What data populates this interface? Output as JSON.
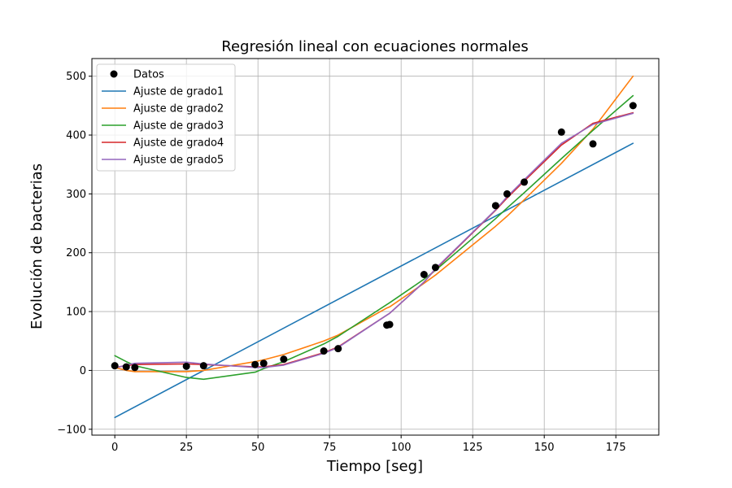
{
  "chart_data": {
    "type": "line",
    "title": "Regresión lineal con ecuaciones normales",
    "xlabel": "Tiempo [seg]",
    "ylabel": "Evolución de bacterias",
    "xlim": [
      -8,
      190
    ],
    "ylim": [
      -110,
      530
    ],
    "xticks": [
      0,
      25,
      50,
      75,
      100,
      125,
      150,
      175
    ],
    "yticks": [
      -100,
      0,
      100,
      200,
      300,
      400,
      500
    ],
    "xtick_labels": [
      "0",
      "25",
      "50",
      "75",
      "100",
      "125",
      "150",
      "175"
    ],
    "ytick_labels": [
      "−100",
      "0",
      "100",
      "200",
      "300",
      "400",
      "500"
    ],
    "grid": true,
    "legend_position": "upper-left",
    "scatter": {
      "name": "Datos",
      "color": "#000000",
      "x": [
        0,
        4,
        7,
        25,
        31,
        49,
        52,
        59,
        73,
        78,
        95,
        96,
        108,
        112,
        133,
        137,
        143,
        156,
        167,
        181
      ],
      "y": [
        8,
        6,
        5,
        7,
        8,
        10,
        12,
        19,
        33,
        37,
        77,
        78,
        163,
        175,
        280,
        300,
        320,
        405,
        385,
        450
      ]
    },
    "series": [
      {
        "name": "Ajuste de grado1",
        "color": "#1f77b4",
        "x": [
          0,
          181
        ],
        "y": [
          -80,
          386
        ]
      },
      {
        "name": "Ajuste de grado2",
        "color": "#ff7f0e",
        "x": [
          0,
          4,
          7,
          25,
          31,
          49,
          52,
          59,
          73,
          78,
          95,
          96,
          108,
          112,
          133,
          137,
          143,
          156,
          167,
          181
        ],
        "y": [
          5,
          0,
          -2,
          -2,
          0,
          15,
          18,
          27,
          50,
          60,
          106,
          108,
          148,
          162,
          245,
          262,
          290,
          352,
          410,
          500
        ]
      },
      {
        "name": "Ajuste de grado3",
        "color": "#2ca02c",
        "x": [
          0,
          4,
          7,
          25,
          31,
          49,
          52,
          59,
          73,
          78,
          95,
          96,
          108,
          112,
          133,
          137,
          143,
          156,
          167,
          181
        ],
        "y": [
          25,
          15,
          8,
          -12,
          -15,
          -3,
          3,
          15,
          45,
          58,
          112,
          115,
          155,
          170,
          258,
          276,
          302,
          360,
          408,
          467
        ]
      },
      {
        "name": "Ajuste de grado4",
        "color": "#d62728",
        "x": [
          0,
          4,
          7,
          25,
          31,
          49,
          52,
          59,
          73,
          78,
          95,
          96,
          108,
          112,
          133,
          137,
          143,
          156,
          167,
          181
        ],
        "y": [
          5,
          8,
          10,
          11,
          10,
          6,
          6,
          10,
          30,
          40,
          94,
          97,
          150,
          172,
          272,
          293,
          322,
          383,
          420,
          438
        ]
      },
      {
        "name": "Ajuste de grado5",
        "color": "#9467bd",
        "x": [
          0,
          4,
          7,
          25,
          31,
          49,
          52,
          59,
          73,
          78,
          95,
          96,
          108,
          112,
          133,
          137,
          143,
          156,
          167,
          181
        ],
        "y": [
          4,
          9,
          12,
          14,
          11,
          5,
          5,
          9,
          29,
          39,
          94,
          97,
          150,
          173,
          273,
          295,
          324,
          386,
          418,
          437
        ]
      }
    ]
  }
}
